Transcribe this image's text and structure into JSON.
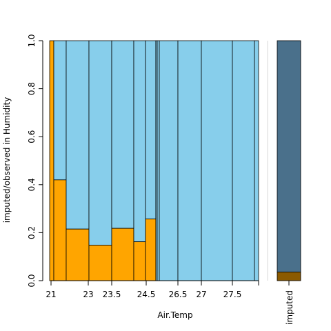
{
  "chart_data": [
    {
      "type": "bar",
      "subtype": "spinogram",
      "xlabel": "Air.Temp",
      "ylabel": "imputed/observed in Humidity",
      "ylim": [
        0,
        1
      ],
      "yticks": [
        "0.0",
        "0.2",
        "0.4",
        "0.6",
        "0.8",
        "1.0"
      ],
      "x_tick_values": [
        21,
        23,
        23.5,
        24.5,
        26.5,
        27,
        27.5
      ],
      "xticks": [
        "21",
        "23",
        "23.5",
        "24.5",
        "26.5",
        "27",
        "27.5"
      ],
      "bins": [
        {
          "start": 21.0,
          "end": 21.5,
          "imputed_fraction": 1.0
        },
        {
          "start": 21.5,
          "end": 22.0,
          "imputed_fraction": 0.42
        },
        {
          "start": 22.0,
          "end": 22.5,
          "imputed_fraction": 0.215
        },
        {
          "start": 22.5,
          "end": 23.0,
          "imputed_fraction": 0.148
        },
        {
          "start": 23.0,
          "end": 23.5,
          "imputed_fraction": 0.218
        },
        {
          "start": 23.5,
          "end": 24.0,
          "imputed_fraction": 0.162
        },
        {
          "start": 24.0,
          "end": 24.5,
          "imputed_fraction": 0.257
        },
        {
          "start": 24.5,
          "end": 25.0,
          "imputed_fraction": 0.0
        },
        {
          "start": 25.0,
          "end": 25.5,
          "imputed_fraction": 0.0
        },
        {
          "start": 25.5,
          "end": 26.0,
          "imputed_fraction": 0.0
        },
        {
          "start": 26.0,
          "end": 26.5,
          "imputed_fraction": 0.0
        },
        {
          "start": 26.5,
          "end": 27.0,
          "imputed_fraction": 0.0
        },
        {
          "start": 27.0,
          "end": 27.5,
          "imputed_fraction": 0.0
        },
        {
          "start": 27.5,
          "end": 28.0,
          "imputed_fraction": 0.0
        }
      ],
      "colors": {
        "imputed": "#FFA500",
        "observed": "#87CEEB",
        "outline": "#000000"
      }
    },
    {
      "type": "bar",
      "subtype": "stacked-single",
      "category": "imputed",
      "imputed_fraction": 0.036,
      "colors": {
        "imputed": "#8B5A00",
        "observed": "#4A708B"
      }
    }
  ]
}
